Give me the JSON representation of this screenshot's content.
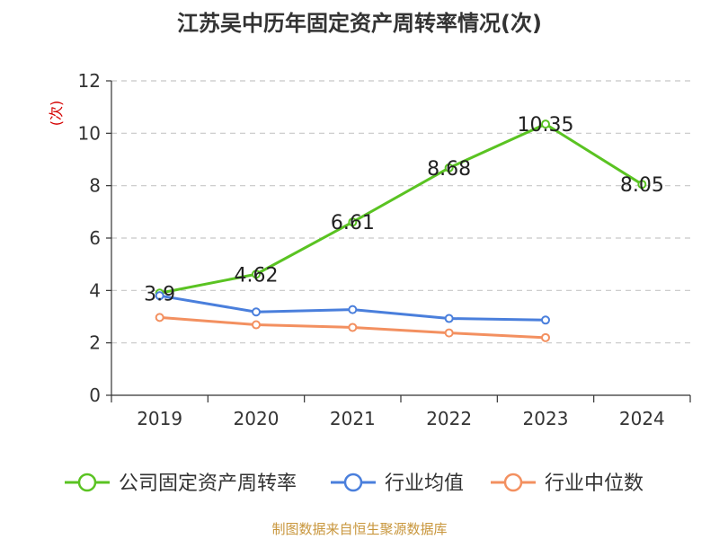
{
  "chart_data": {
    "type": "line",
    "title": "江苏吴中历年固定资产周转率情况(次)",
    "ylabel": "(次)",
    "categories": [
      "2019",
      "2020",
      "2021",
      "2022",
      "2023",
      "2024"
    ],
    "ylim": [
      0,
      12
    ],
    "yticks": [
      0,
      2,
      4,
      6,
      8,
      10,
      12
    ],
    "grid": true,
    "legend_position": "bottom",
    "series": [
      {
        "name": "公司固定资产周转率",
        "color": "#5ac322",
        "values": [
          3.9,
          4.62,
          6.61,
          8.68,
          10.35,
          8.05
        ],
        "labels": [
          "3.9",
          "4.62",
          "6.61",
          "8.68",
          "10.35",
          "8.05"
        ]
      },
      {
        "name": "行业均值",
        "color": "#4a7fdc",
        "values": [
          3.8,
          3.18,
          3.27,
          2.93,
          2.87,
          null
        ]
      },
      {
        "name": "行业中位数",
        "color": "#f39060",
        "values": [
          2.97,
          2.69,
          2.59,
          2.38,
          2.2,
          null
        ]
      }
    ]
  },
  "source_text": "制图数据来自恒生聚源数据库"
}
